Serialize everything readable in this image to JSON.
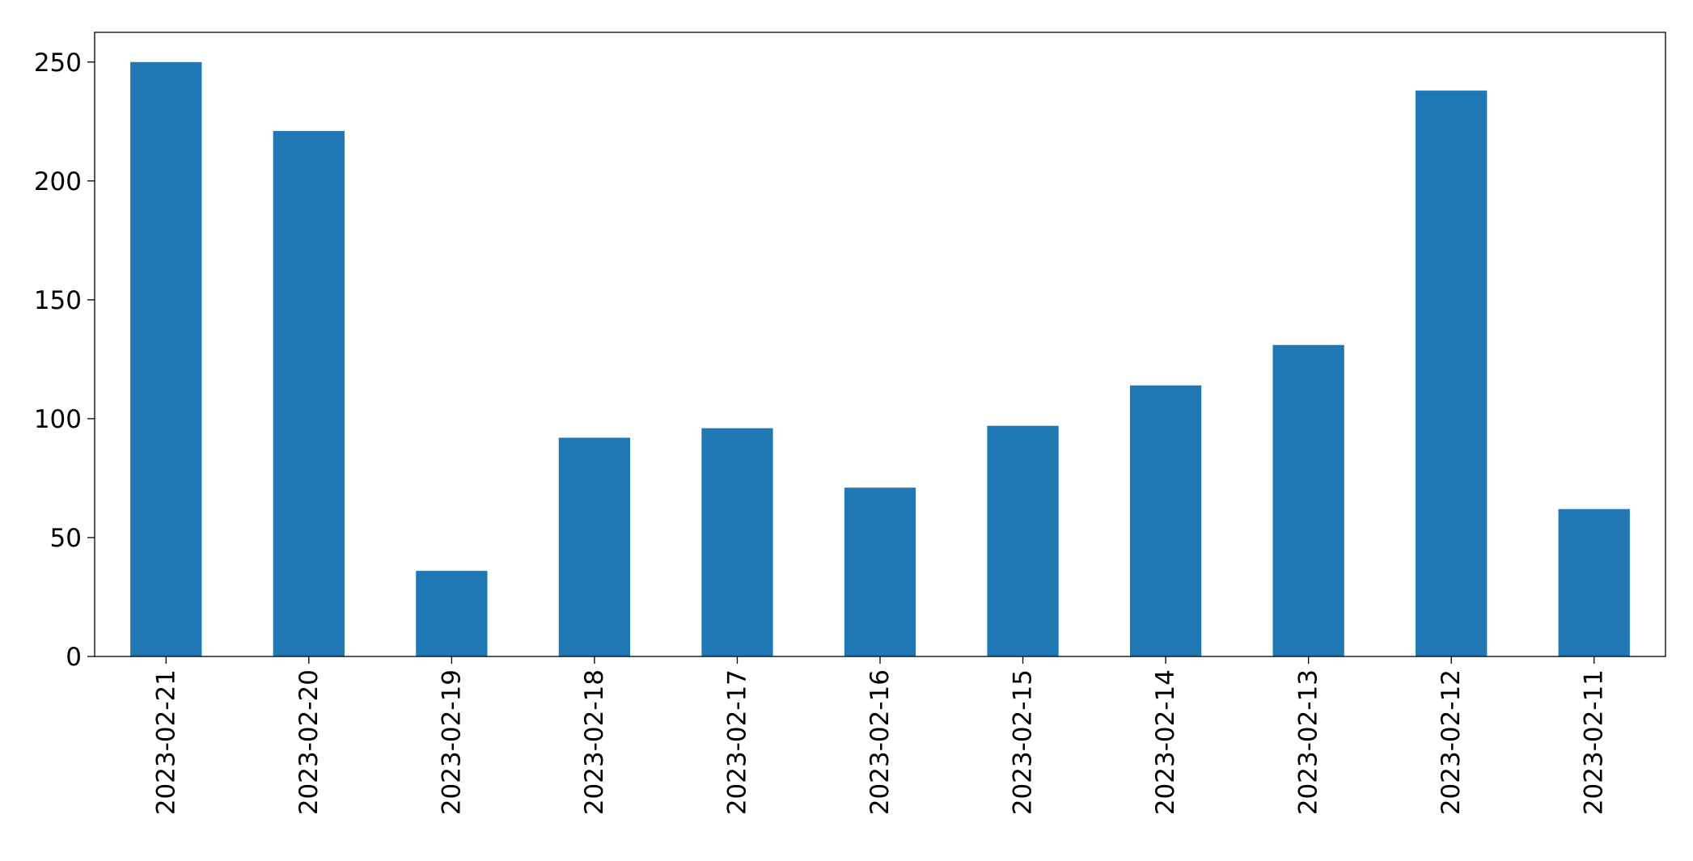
{
  "chart_data": {
    "type": "bar",
    "title": "",
    "xlabel": "",
    "ylabel": "",
    "categories": [
      "2023-02-21",
      "2023-02-20",
      "2023-02-19",
      "2023-02-18",
      "2023-02-17",
      "2023-02-16",
      "2023-02-15",
      "2023-02-14",
      "2023-02-13",
      "2023-02-12",
      "2023-02-11"
    ],
    "values": [
      250,
      221,
      36,
      92,
      96,
      71,
      97,
      114,
      131,
      238,
      62
    ],
    "ylim": [
      0,
      262.5
    ],
    "yticks": [
      0,
      50,
      100,
      150,
      200,
      250
    ],
    "grid": false,
    "legend": "none",
    "bar_color": "#1f77b4"
  }
}
